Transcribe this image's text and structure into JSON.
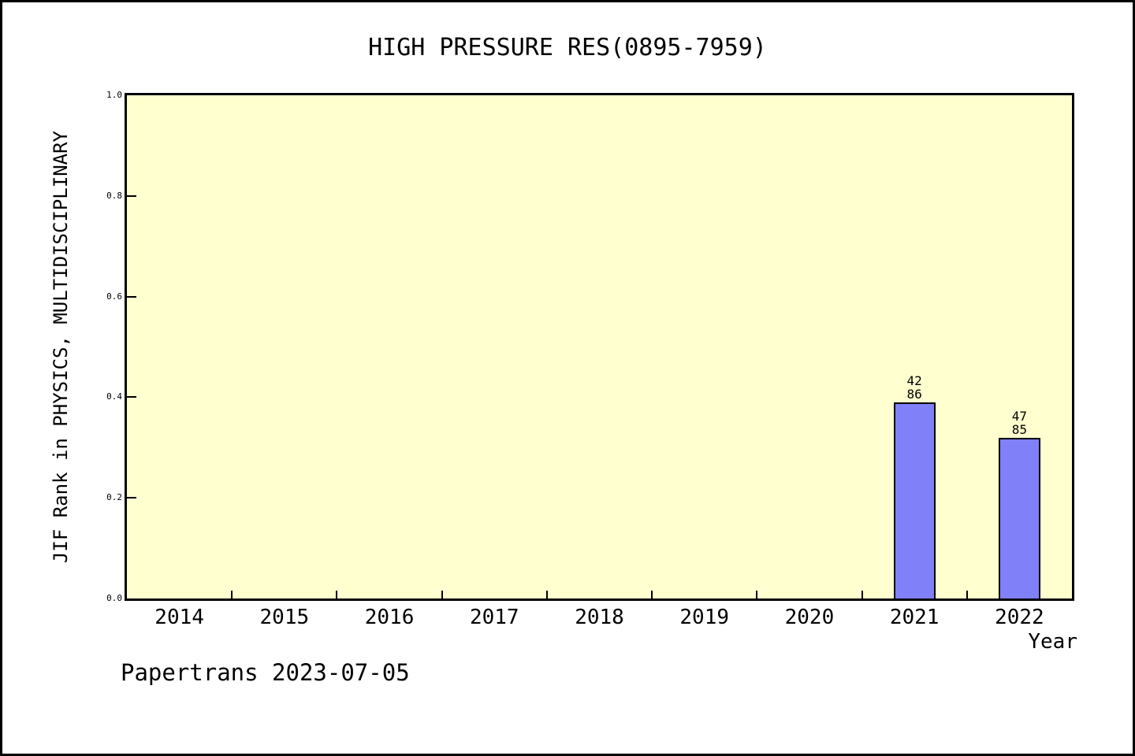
{
  "window": {
    "background": "#ffffff",
    "frame_border_color": "#000000"
  },
  "chart_data": {
    "type": "bar",
    "title": "HIGH PRESSURE RES(0895-7959)",
    "xlabel": "Year",
    "ylabel": "JIF Rank in PHYSICS, MULTIDISCIPLINARY",
    "categories": [
      "2014",
      "2015",
      "2016",
      "2017",
      "2018",
      "2019",
      "2020",
      "2021",
      "2022"
    ],
    "values": [
      null,
      null,
      null,
      null,
      null,
      null,
      null,
      0.39,
      0.32
    ],
    "bar_annotations": [
      null,
      null,
      null,
      null,
      null,
      null,
      null,
      {
        "rank": "42",
        "total": "86"
      },
      {
        "rank": "47",
        "total": "85"
      }
    ],
    "ylim": [
      0.0,
      1.0
    ],
    "yticks": [
      "0.0",
      "0.2",
      "0.4",
      "0.6",
      "0.8",
      "1.0"
    ],
    "grid": false,
    "legend": null,
    "plot_background": "#ffffd0",
    "bar_color": "#8080f8",
    "bar_border_color": "#000000",
    "axis_color": "#000000",
    "text_color": "#000000"
  },
  "footer": {
    "text": "Papertrans 2023-07-05"
  }
}
